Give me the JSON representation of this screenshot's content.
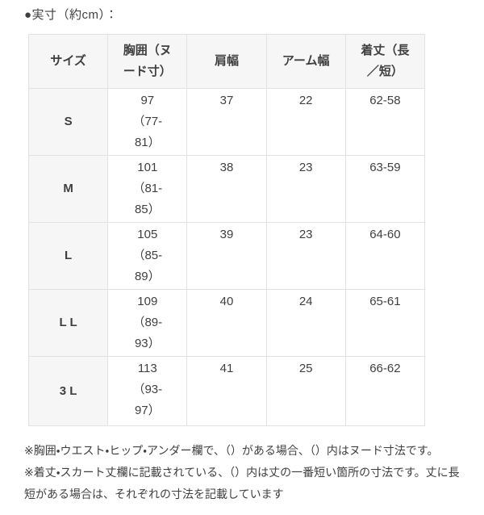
{
  "colors": {
    "header_bg": "#f6f6f6",
    "border": "#e2e2e2",
    "text": "#3f3f3f",
    "page_bg": "#ffffff"
  },
  "title": "●実寸（約cm）：",
  "table": {
    "headers": {
      "size": "サイズ",
      "chest": "胸囲（ヌ\nード寸）",
      "shoulder": "肩幅",
      "arm": "アーム幅",
      "length": "着丈（長\n／短）"
    },
    "rows": [
      {
        "size": "S",
        "chest": "97\n（77-\n81）",
        "shoulder": "37",
        "arm": "22",
        "length": "62-58"
      },
      {
        "size": "M",
        "chest": "101\n（81-\n85）",
        "shoulder": "38",
        "arm": "23",
        "length": "63-59"
      },
      {
        "size": "L",
        "chest": "105\n（85-\n89）",
        "shoulder": "39",
        "arm": "23",
        "length": "64-60"
      },
      {
        "size": "L L",
        "chest": "109\n（89-\n93）",
        "shoulder": "40",
        "arm": "24",
        "length": "65-61"
      },
      {
        "size": "3 L",
        "chest": "113\n（93-\n97）",
        "shoulder": "41",
        "arm": "25",
        "length": "66-62"
      }
    ]
  },
  "notes": [
    "※胸囲・ウエスト・ヒップ・アンダー欄で、（）がある場合、（）内はヌード寸法です。",
    "※着丈・スカート丈欄に記載されている、（）内は丈の一番短い箇所の寸法です。丈に長短がある場合は、それぞれの寸法を記載しています"
  ]
}
